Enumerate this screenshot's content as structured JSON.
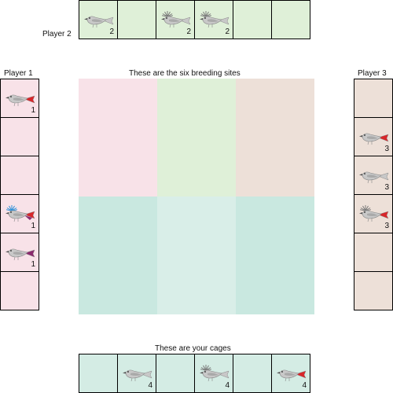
{
  "player2": {
    "label": "Player 2",
    "color": "#dff0d8",
    "cells": [
      {
        "bird": "grey-bird",
        "crest": "none",
        "tail": "grey",
        "count": "2"
      },
      {
        "bird": null
      },
      {
        "bird": "grey-bird",
        "crest": "grey-crest",
        "tail": "grey",
        "count": "2"
      },
      {
        "bird": "grey-bird",
        "crest": "grey-crest",
        "tail": "grey",
        "count": "2"
      },
      {
        "bird": null
      },
      {
        "bird": null
      }
    ]
  },
  "player1": {
    "label": "Player 1",
    "color": "#f8e2e8",
    "cells": [
      {
        "bird": "grey-bird",
        "crest": "none",
        "tail": "red",
        "count": "1"
      },
      {
        "bird": null
      },
      {
        "bird": null
      },
      {
        "bird": "grey-bird",
        "crest": "blue-crest",
        "tail": "red-purple",
        "count": "1"
      },
      {
        "bird": "grey-bird",
        "crest": "none",
        "tail": "purple",
        "count": "1"
      },
      {
        "bird": null
      }
    ]
  },
  "player3": {
    "label": "Player 3",
    "color": "#ede0d8",
    "cells": [
      {
        "bird": null
      },
      {
        "bird": "grey-bird",
        "crest": "none",
        "tail": "red",
        "count": "3"
      },
      {
        "bird": "grey-bird",
        "crest": "none",
        "tail": "grey",
        "count": "3"
      },
      {
        "bird": "grey-bird",
        "crest": "grey-crest",
        "tail": "red",
        "count": "3"
      },
      {
        "bird": null
      },
      {
        "bird": null
      }
    ]
  },
  "breeding": {
    "label": "These are the six breeding sites",
    "sites": [
      {
        "color": "#f8e2e8"
      },
      {
        "color": "#dff0d8"
      },
      {
        "color": "#ede0d8"
      },
      {
        "color": "#c9e8e0"
      },
      {
        "color": "#d9eee8"
      },
      {
        "color": "#c9e8e0"
      }
    ]
  },
  "cages": {
    "label": "These are your cages",
    "color": "#d4ece4",
    "cells": [
      {
        "bird": null
      },
      {
        "bird": "grey-bird",
        "crest": "none",
        "tail": "grey",
        "count": "4"
      },
      {
        "bird": null
      },
      {
        "bird": "grey-bird",
        "crest": "grey-crest",
        "tail": "grey",
        "count": "4"
      },
      {
        "bird": null
      },
      {
        "bird": "grey-bird",
        "crest": "none",
        "tail": "red",
        "count": "4"
      }
    ]
  },
  "colors": {
    "bird_body": "#c8c8c8",
    "bird_outline": "#8a8a8a",
    "red_tail": "#d8262a",
    "purple_tail": "#8b2a6e",
    "blue_crest": "#2a8fd8",
    "grey_crest": "#7a7a7a"
  }
}
